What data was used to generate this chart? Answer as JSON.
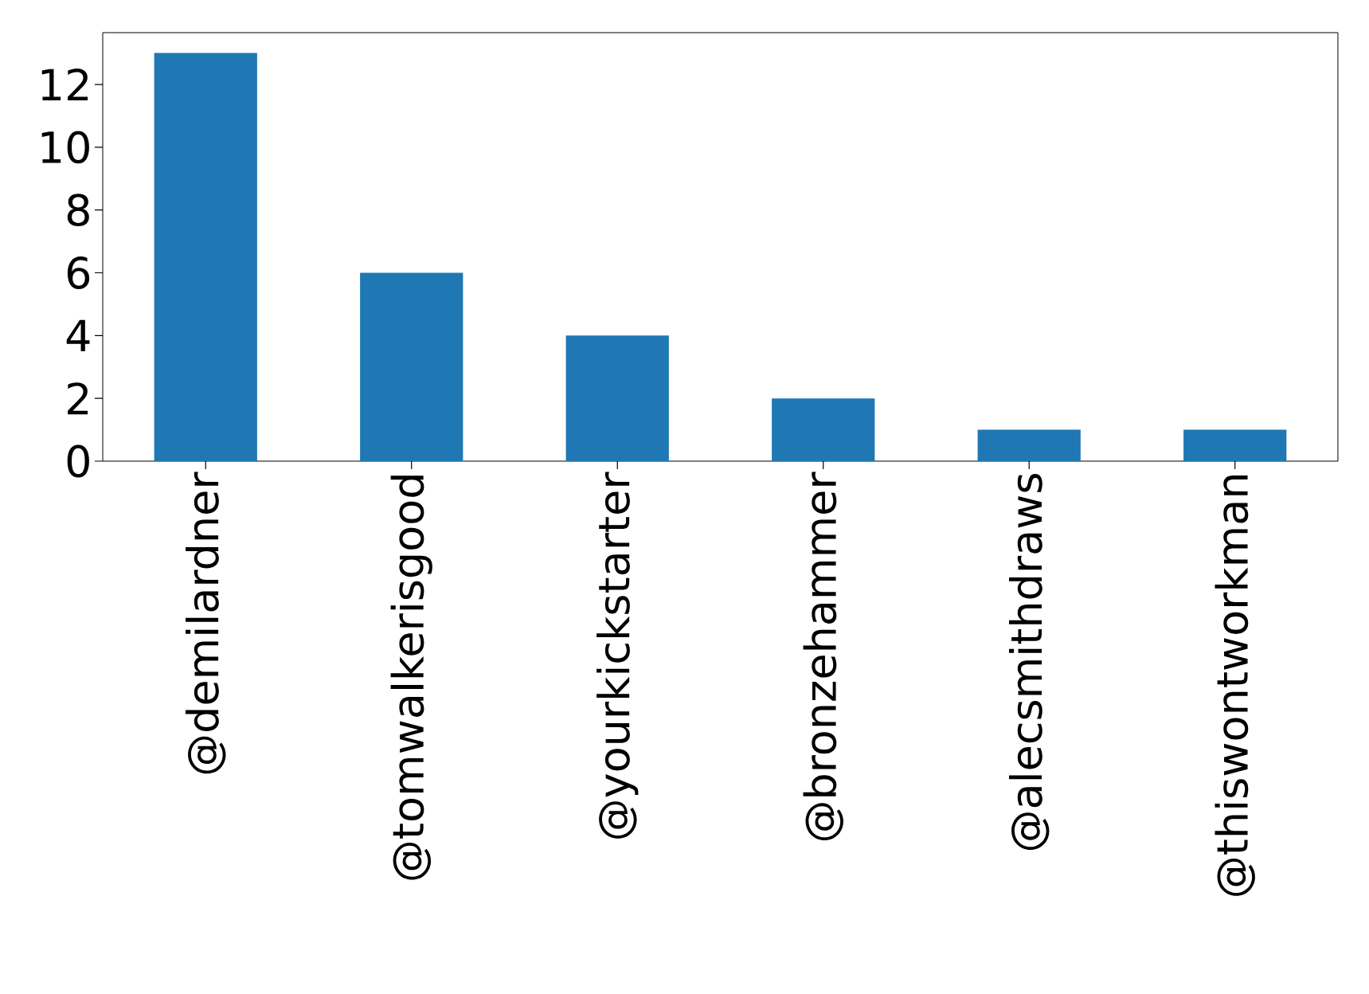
{
  "chart_data": {
    "type": "bar",
    "categories": [
      "@demilardner",
      "@tomwalkerisgood",
      "@yourkickstarter",
      "@bronzehammer",
      "@alecsmithdraws",
      "@thiswontworkman"
    ],
    "values": [
      13,
      6,
      4,
      2,
      1,
      1
    ],
    "color": "#1f77b4",
    "ylim": [
      0,
      13.65
    ],
    "yticks": [
      0,
      2,
      4,
      6,
      8,
      10,
      12
    ],
    "grid": false
  }
}
